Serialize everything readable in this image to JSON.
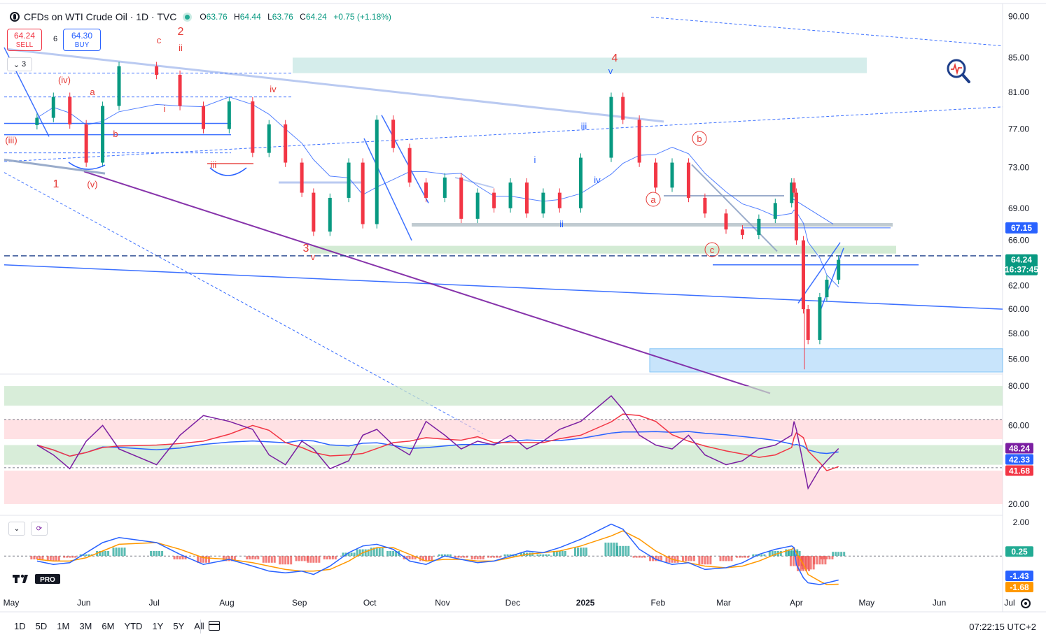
{
  "header": {
    "symbol": "CFDs on WTI Crude Oil · 1D · TVC",
    "open_label": "O",
    "open": "63.76",
    "high_label": "H",
    "high": "64.44",
    "low_label": "L",
    "low": "63.76",
    "close_label": "C",
    "close": "64.24",
    "change": "+0.75 (+1.18%)",
    "up_color": "#089981"
  },
  "trade": {
    "sell_price": "64.24",
    "sell_label": "SELL",
    "buy_price": "64.30",
    "buy_label": "BUY",
    "spread": "6"
  },
  "layers_count": "3",
  "timeframes": [
    "1D",
    "5D",
    "1M",
    "3M",
    "6M",
    "YTD",
    "1Y",
    "5Y",
    "All"
  ],
  "clock": "07:22:15 UTC+2",
  "chart_data": {
    "type": "line",
    "series": [
      {
        "values": [
          78.2,
          80.5,
          77.5,
          73.5,
          79.5,
          84.0,
          83.0,
          79.5,
          77.0,
          80.0,
          74.5,
          77.5,
          73.5,
          70.5,
          66.8,
          70.0,
          73.5,
          67.5,
          78.0,
          75.0,
          71.5,
          70.0,
          72.0,
          68.0,
          70.5,
          69.0,
          71.5,
          68.5,
          70.5,
          69.0,
          74.0,
          80.5,
          78.0,
          73.5,
          71.0,
          73.5,
          70.0,
          68.5,
          67.0,
          66.5,
          68.0,
          69.5,
          71.5,
          70.5,
          66.0,
          60.0,
          57.5,
          61.0,
          62.5,
          64.24
        ]
      }
    ],
    "x_dates": [
      "2024-05-15",
      "2024-05-22",
      "2024-05-29",
      "2024-06-05",
      "2024-06-12",
      "2024-06-19",
      "2024-07-05",
      "2024-07-15",
      "2024-07-25",
      "2024-08-05",
      "2024-08-15",
      "2024-08-22",
      "2024-08-29",
      "2024-09-05",
      "2024-09-10",
      "2024-09-17",
      "2024-09-25",
      "2024-10-01",
      "2024-10-07",
      "2024-10-14",
      "2024-10-21",
      "2024-10-28",
      "2024-11-05",
      "2024-11-12",
      "2024-11-19",
      "2024-11-26",
      "2024-12-03",
      "2024-12-10",
      "2024-12-17",
      "2024-12-24",
      "2025-01-02",
      "2025-01-15",
      "2025-01-20",
      "2025-01-27",
      "2025-02-03",
      "2025-02-10",
      "2025-02-17",
      "2025-02-24",
      "2025-03-05",
      "2025-03-12",
      "2025-03-19",
      "2025-03-26",
      "2025-04-02",
      "2025-04-03",
      "2025-04-04",
      "2025-04-07",
      "2025-04-09",
      "2025-04-14",
      "2025-04-17",
      "2025-04-22"
    ],
    "x_ticks": [
      "May",
      "Jun",
      "Jul",
      "Aug",
      "Sep",
      "Oct",
      "Nov",
      "Dec",
      "2025",
      "Feb",
      "Mar",
      "Apr",
      "May",
      "Jun",
      "Jul"
    ],
    "y_ticks": [
      "90.00",
      "85.00",
      "81.00",
      "77.00",
      "73.00",
      "69.00",
      "66.00",
      "62.00",
      "60.00",
      "58.00",
      "56.00"
    ],
    "y_scale": "log",
    "ylim": [
      55,
      91
    ],
    "price_labels": [
      {
        "value": "67.15",
        "color": "#2962ff"
      },
      {
        "value": "64.24",
        "color": "#089981"
      }
    ],
    "countdown": "16:37:45",
    "wave_labels": [
      {
        "text": "1",
        "color": "#e53935"
      },
      {
        "text": "2",
        "color": "#e53935"
      },
      {
        "text": "3",
        "color": "#e53935"
      },
      {
        "text": "4",
        "color": "#e53935"
      },
      {
        "text": "(iv)",
        "color": "#e53935"
      },
      {
        "text": "(iii)",
        "color": "#e53935"
      },
      {
        "text": "(v)",
        "color": "#e53935"
      },
      {
        "text": "c",
        "color": "#e53935"
      },
      {
        "text": "ii",
        "color": "#e53935"
      },
      {
        "text": "a",
        "color": "#e53935"
      },
      {
        "text": "b",
        "color": "#e53935"
      },
      {
        "text": "i",
        "color": "#e53935"
      },
      {
        "text": "iv",
        "color": "#e53935"
      },
      {
        "text": "iii",
        "color": "#e53935"
      },
      {
        "text": "v",
        "color": "#e53935"
      },
      {
        "text": "v",
        "color": "#2962ff"
      },
      {
        "text": "iii",
        "color": "#2962ff"
      },
      {
        "text": "i",
        "color": "#2962ff"
      },
      {
        "text": "iv",
        "color": "#2962ff"
      },
      {
        "text": "ii",
        "color": "#2962ff"
      }
    ],
    "circled_labels": [
      "a",
      "b",
      "c"
    ]
  },
  "rsi": {
    "y_ticks": [
      "80.00",
      "60.00",
      "20.00"
    ],
    "ylim": [
      15,
      85
    ],
    "rsi_values": [
      50,
      45,
      38,
      52,
      60,
      48,
      40,
      55,
      65,
      62,
      58,
      45,
      40,
      52,
      48,
      38,
      42,
      55,
      58,
      50,
      45,
      62,
      55,
      48,
      52,
      50,
      55,
      48,
      52,
      58,
      62,
      75,
      68,
      55,
      50,
      48,
      55,
      45,
      40,
      42,
      48,
      50,
      55,
      62,
      58,
      40,
      28,
      38,
      42,
      48.24
    ],
    "labels": [
      {
        "value": "48.24",
        "color": "#7b1fa2"
      },
      {
        "value": "42.33",
        "color": "#2962ff"
      },
      {
        "value": "41.68",
        "color": "#f23645"
      }
    ]
  },
  "macd": {
    "y_ticks": [
      "2.00"
    ],
    "ylim": [
      -2.2,
      2.3
    ],
    "hist": [
      -0.2,
      -0.3,
      -0.1,
      0.1,
      0.3,
      0.5,
      0.3,
      -0.2,
      -0.4,
      -0.3,
      -0.2,
      -0.4,
      -0.5,
      -0.3,
      -0.4,
      -0.2,
      0.2,
      0.4,
      0.5,
      0.3,
      -0.2,
      -0.3,
      0.1,
      -0.1,
      -0.2,
      -0.1,
      0.1,
      0.2,
      0.1,
      0.3,
      0.5,
      0.8,
      0.6,
      -0.1,
      -0.3,
      -0.4,
      -0.3,
      -0.5,
      -0.3,
      -0.1,
      0.1,
      0.3,
      0.4,
      0.3,
      -0.6,
      -0.9,
      -0.8,
      -0.5,
      -0.2,
      0.25
    ],
    "macd_values": [
      -0.3,
      -0.5,
      -0.4,
      0.2,
      0.8,
      1.1,
      0.8,
      0.1,
      -0.5,
      -0.2,
      -0.6,
      -0.9,
      -1.0,
      -0.9,
      -1.1,
      -0.6,
      0.2,
      0.6,
      0.7,
      0.4,
      -0.3,
      -0.5,
      0.0,
      -0.2,
      -0.4,
      -0.3,
      0.0,
      0.3,
      0.2,
      0.5,
      1.0,
      1.9,
      1.6,
      0.4,
      -0.2,
      -0.5,
      -0.4,
      -0.8,
      -0.7,
      -0.4,
      0.1,
      0.4,
      0.6,
      0.5,
      -0.5,
      -1.3,
      -1.6,
      -1.7,
      -1.6,
      -1.43
    ],
    "signal_values": [
      -0.2,
      -0.3,
      -0.3,
      -0.1,
      0.3,
      0.7,
      0.8,
      0.4,
      -0.1,
      -0.2,
      -0.4,
      -0.6,
      -0.8,
      -0.9,
      -0.9,
      -0.8,
      -0.3,
      0.2,
      0.5,
      0.5,
      0.1,
      -0.3,
      -0.2,
      -0.2,
      -0.3,
      -0.3,
      -0.1,
      0.1,
      0.2,
      0.3,
      0.6,
      1.2,
      1.5,
      1.0,
      0.3,
      -0.2,
      -0.4,
      -0.6,
      -0.7,
      -0.6,
      -0.3,
      0.1,
      0.4,
      0.5,
      0.2,
      -0.5,
      -1.1,
      -1.5,
      -1.7,
      -1.68
    ],
    "labels": [
      {
        "value": "0.25",
        "color": "#22ab94"
      },
      {
        "value": "-1.43",
        "color": "#2962ff"
      },
      {
        "value": "-1.68",
        "color": "#ff9800"
      }
    ]
  },
  "colors": {
    "bull": "#089981",
    "bear": "#f23645",
    "ma": "#2962ff",
    "rsi": "#7b1fa2",
    "rsi_ma": "#f23645",
    "rsi_ma2": "#2962ff",
    "macd": "#2962ff",
    "signal": "#ff9800",
    "ob_green": "#c8e6c9",
    "ob_red": "#ffcdd2",
    "zone_blue": "#bbdefb",
    "trend": "#2962ff",
    "purple": "#7b1fa2"
  }
}
